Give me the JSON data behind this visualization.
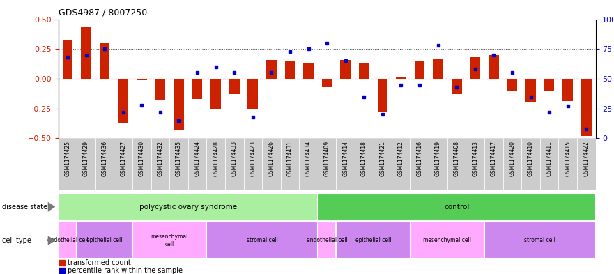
{
  "title": "GDS4987 / 8007250",
  "samples": [
    "GSM1174425",
    "GSM1174429",
    "GSM1174436",
    "GSM1174427",
    "GSM1174430",
    "GSM1174432",
    "GSM1174435",
    "GSM1174424",
    "GSM1174428",
    "GSM1174433",
    "GSM1174423",
    "GSM1174426",
    "GSM1174431",
    "GSM1174434",
    "GSM1174409",
    "GSM1174414",
    "GSM1174418",
    "GSM1174421",
    "GSM1174412",
    "GSM1174416",
    "GSM1174419",
    "GSM1174408",
    "GSM1174413",
    "GSM1174417",
    "GSM1174420",
    "GSM1174410",
    "GSM1174411",
    "GSM1174415",
    "GSM1174422"
  ],
  "transformed_count": [
    0.32,
    0.43,
    0.3,
    -0.37,
    -0.01,
    -0.18,
    -0.43,
    -0.17,
    -0.25,
    -0.13,
    -0.26,
    0.16,
    0.15,
    0.13,
    -0.07,
    0.16,
    0.13,
    -0.28,
    0.02,
    0.15,
    0.17,
    -0.13,
    0.18,
    0.2,
    -0.1,
    -0.2,
    -0.1,
    -0.19,
    -0.48
  ],
  "percentile_rank_pct": [
    68,
    70,
    75,
    22,
    28,
    22,
    15,
    55,
    60,
    55,
    18,
    55,
    73,
    75,
    80,
    65,
    35,
    20,
    45,
    45,
    78,
    43,
    58,
    70,
    55,
    35,
    22,
    27,
    8
  ],
  "disease_state_groups": [
    {
      "label": "polycystic ovary syndrome",
      "start": 0,
      "end": 13,
      "color": "#AAEEA0"
    },
    {
      "label": "control",
      "start": 14,
      "end": 28,
      "color": "#55CC55"
    }
  ],
  "cell_type_groups": [
    {
      "label": "endothelial cell",
      "start": 0,
      "end": 0,
      "color": "#FFAAFF"
    },
    {
      "label": "epithelial cell",
      "start": 1,
      "end": 3,
      "color": "#CC88EE"
    },
    {
      "label": "mesenchymal\ncell",
      "start": 4,
      "end": 7,
      "color": "#FFAAFF"
    },
    {
      "label": "stromal cell",
      "start": 8,
      "end": 13,
      "color": "#CC88EE"
    },
    {
      "label": "endothelial cell",
      "start": 14,
      "end": 14,
      "color": "#FFAAFF"
    },
    {
      "label": "epithelial cell",
      "start": 15,
      "end": 18,
      "color": "#CC88EE"
    },
    {
      "label": "mesenchymal cell",
      "start": 19,
      "end": 22,
      "color": "#FFAAFF"
    },
    {
      "label": "stromal cell",
      "start": 23,
      "end": 28,
      "color": "#CC88EE"
    }
  ],
  "bar_color": "#CC2200",
  "dot_color": "#0000CC",
  "hline_color": "#CC0000",
  "dotted_color": "#444444",
  "tick_bg_color": "#CCCCCC",
  "tick_fontsize": 5.5,
  "bar_fontsize": 7.5,
  "cell_fontsize": 5.5,
  "label_fontsize": 7
}
